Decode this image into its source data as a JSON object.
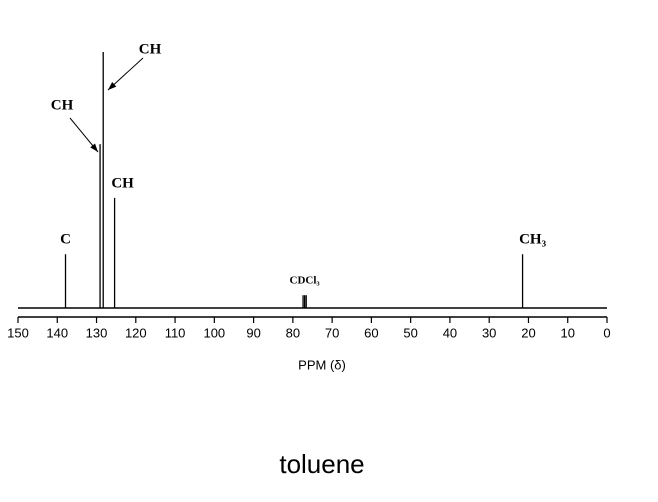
{
  "chart_data": {
    "type": "stick",
    "title": "toluene",
    "x_label": "PPM (δ)",
    "xlim": [
      150,
      0
    ],
    "xticks": [
      150,
      140,
      130,
      120,
      110,
      100,
      90,
      80,
      70,
      60,
      50,
      40,
      30,
      20,
      10,
      0
    ],
    "ylim": [
      0,
      100
    ],
    "x": [
      137.9,
      129.1,
      128.3,
      125.4,
      77.4,
      77.0,
      76.6,
      21.5
    ],
    "values": [
      21,
      64,
      100,
      43,
      5,
      5,
      5,
      21
    ],
    "peak_labels": [
      "C",
      "CH",
      "CH",
      "CH",
      null,
      "CDCl₃",
      null,
      "CH₃"
    ],
    "color": "#000000"
  }
}
